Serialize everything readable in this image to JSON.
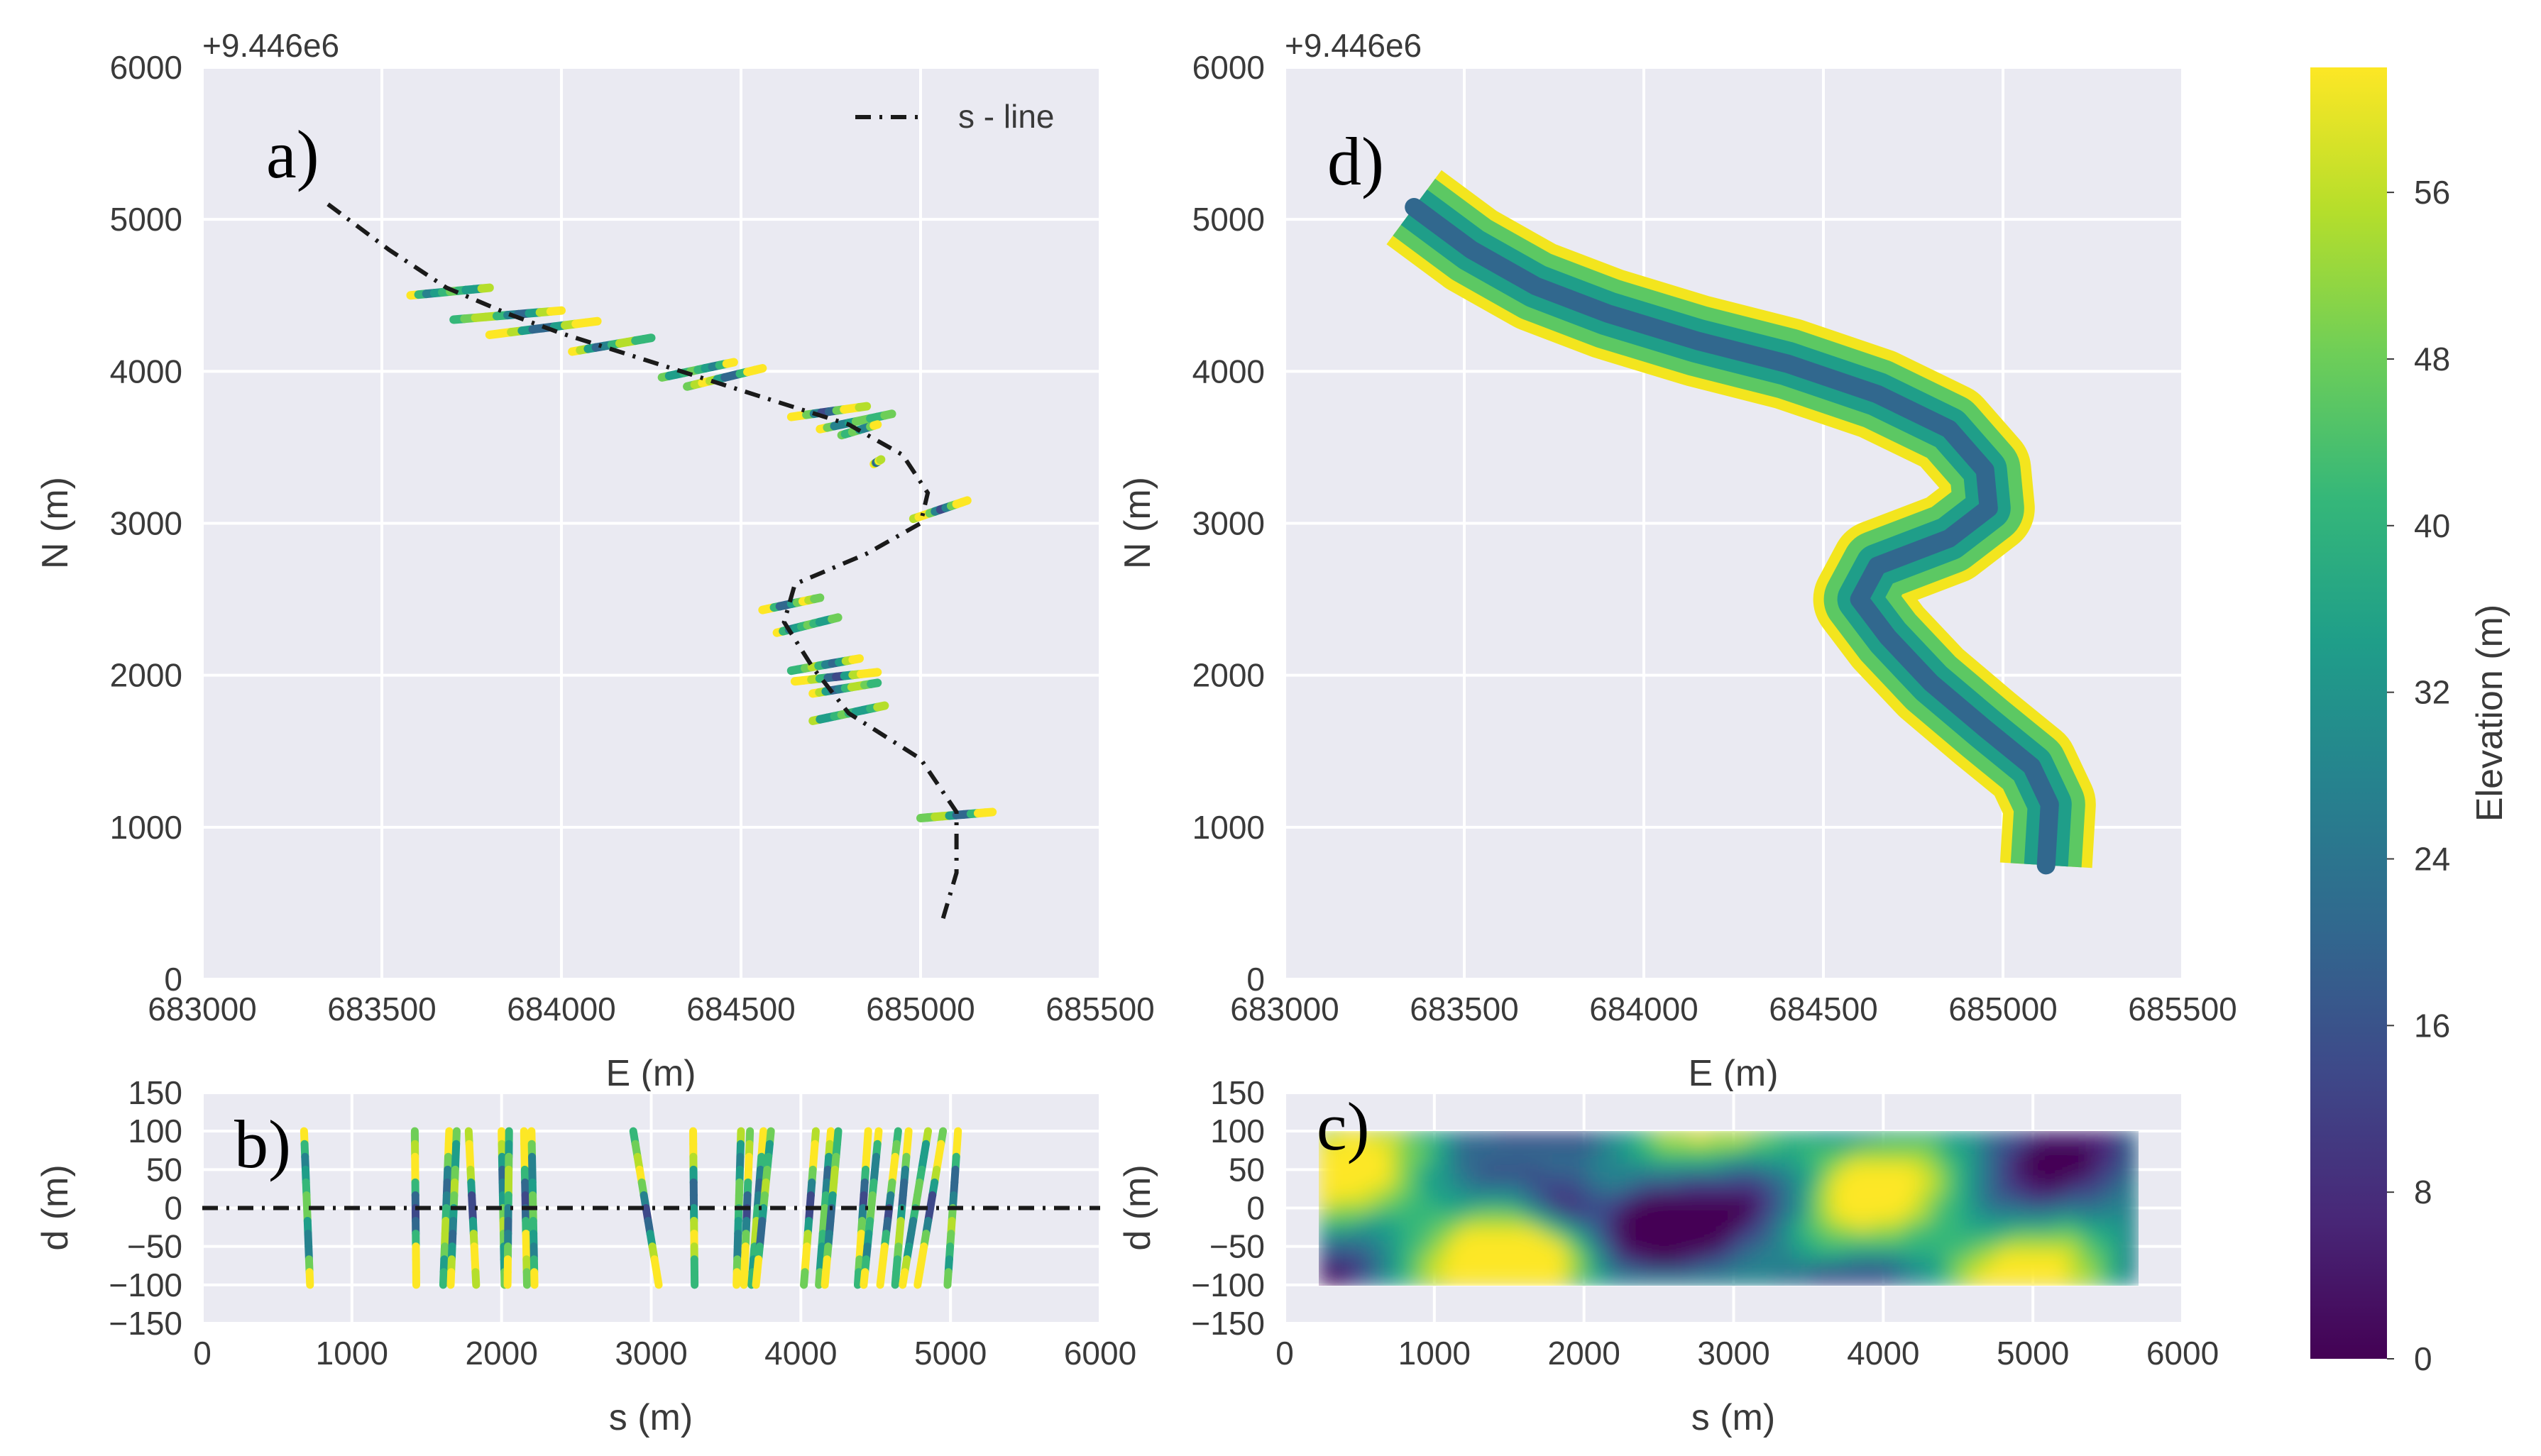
{
  "figure": {
    "colors": {
      "axes_bg": "#eaeaf2",
      "grid": "#ffffff",
      "text": "#3a3a3a",
      "s_line": "#1a1a1a"
    },
    "viridis": [
      "#440154",
      "#482878",
      "#3e4989",
      "#31688e",
      "#26828e",
      "#1f9e89",
      "#35b779",
      "#6ece58",
      "#b5de2b",
      "#fde725"
    ]
  },
  "chart_data": [
    {
      "id": "a",
      "panel_label": "a)",
      "type": "scatter",
      "title": "",
      "xlabel": "E (m)",
      "ylabel": "N (m)",
      "offset_text": "+9.446e6",
      "xlim": [
        683000,
        685500
      ],
      "ylim": [
        0,
        6000
      ],
      "xticks": [
        "683000",
        "683500",
        "684000",
        "684500",
        "685000",
        "685500"
      ],
      "yticks": [
        "0",
        "1000",
        "2000",
        "3000",
        "4000",
        "5000",
        "6000"
      ],
      "legend": {
        "label": "s - line",
        "placement": "top-right"
      },
      "s_line": {
        "x": [
          683350,
          683520,
          683680,
          683850,
          684000,
          684200,
          684400,
          684600,
          684800,
          684950,
          685020,
          685000,
          684850,
          684650,
          684620,
          684700,
          684800,
          685000,
          685100,
          685100,
          685060
        ],
        "y": [
          5100,
          4800,
          4550,
          4380,
          4250,
          4100,
          3950,
          3800,
          3650,
          3450,
          3200,
          3000,
          2800,
          2600,
          2350,
          2050,
          1750,
          1450,
          1100,
          700,
          380
        ]
      },
      "transects": [
        {
          "x1": 683580,
          "y1": 4500,
          "x2": 683800,
          "y2": 4550
        },
        {
          "x1": 683700,
          "y1": 4340,
          "x2": 684000,
          "y2": 4400
        },
        {
          "x1": 683800,
          "y1": 4240,
          "x2": 684100,
          "y2": 4330
        },
        {
          "x1": 684030,
          "y1": 4130,
          "x2": 684250,
          "y2": 4220
        },
        {
          "x1": 684280,
          "y1": 3960,
          "x2": 684480,
          "y2": 4060
        },
        {
          "x1": 684350,
          "y1": 3900,
          "x2": 684560,
          "y2": 4020
        },
        {
          "x1": 684640,
          "y1": 3700,
          "x2": 684850,
          "y2": 3770
        },
        {
          "x1": 684720,
          "y1": 3620,
          "x2": 684920,
          "y2": 3720
        },
        {
          "x1": 684780,
          "y1": 3580,
          "x2": 684880,
          "y2": 3650
        },
        {
          "x1": 684980,
          "y1": 3030,
          "x2": 685130,
          "y2": 3150
        },
        {
          "x1": 684560,
          "y1": 2430,
          "x2": 684720,
          "y2": 2510
        },
        {
          "x1": 684600,
          "y1": 2280,
          "x2": 684770,
          "y2": 2380
        },
        {
          "x1": 684640,
          "y1": 2030,
          "x2": 684830,
          "y2": 2110
        },
        {
          "x1": 684650,
          "y1": 1960,
          "x2": 684880,
          "y2": 2020
        },
        {
          "x1": 684700,
          "y1": 1880,
          "x2": 684880,
          "y2": 1950
        },
        {
          "x1": 684700,
          "y1": 1700,
          "x2": 684900,
          "y2": 1800
        },
        {
          "x1": 685000,
          "y1": 1060,
          "x2": 685200,
          "y2": 1100
        },
        {
          "x1": 684870,
          "y1": 3390,
          "x2": 684890,
          "y2": 3420
        }
      ]
    },
    {
      "id": "b",
      "panel_label": "b)",
      "type": "scatter",
      "title": "",
      "xlabel": "s (m)",
      "ylabel": "d (m)",
      "xlim": [
        0,
        6000
      ],
      "ylim": [
        -150,
        150
      ],
      "xticks": [
        "0",
        "1000",
        "2000",
        "3000",
        "4000",
        "5000",
        "6000"
      ],
      "yticks": [
        "−150",
        "−100",
        "−50",
        "0",
        "50",
        "100",
        "150"
      ],
      "transects": [
        {
          "s_top": 680,
          "s_bottom": 720
        },
        {
          "s_top": 1420,
          "s_bottom": 1430
        },
        {
          "s_top": 1650,
          "s_bottom": 1610
        },
        {
          "s_top": 1700,
          "s_bottom": 1660
        },
        {
          "s_top": 1780,
          "s_bottom": 1830
        },
        {
          "s_top": 2000,
          "s_bottom": 2020
        },
        {
          "s_top": 2050,
          "s_bottom": 2040
        },
        {
          "s_top": 2150,
          "s_bottom": 2170
        },
        {
          "s_top": 2200,
          "s_bottom": 2220
        },
        {
          "s_top": 2880,
          "s_bottom": 3050
        },
        {
          "s_top": 3280,
          "s_bottom": 3290
        },
        {
          "s_top": 3600,
          "s_bottom": 3570
        },
        {
          "s_top": 3660,
          "s_bottom": 3620
        },
        {
          "s_top": 3750,
          "s_bottom": 3670
        },
        {
          "s_top": 3800,
          "s_bottom": 3700
        },
        {
          "s_top": 4100,
          "s_bottom": 4020
        },
        {
          "s_top": 4200,
          "s_bottom": 4120
        },
        {
          "s_top": 4250,
          "s_bottom": 4160
        },
        {
          "s_top": 4450,
          "s_bottom": 4380
        },
        {
          "s_top": 4520,
          "s_bottom": 4420
        },
        {
          "s_top": 4650,
          "s_bottom": 4530
        },
        {
          "s_top": 4720,
          "s_bottom": 4630
        },
        {
          "s_top": 4850,
          "s_bottom": 4680
        },
        {
          "s_top": 4950,
          "s_bottom": 4780
        },
        {
          "s_top": 5050,
          "s_bottom": 4980
        }
      ],
      "s_line_d": 0
    },
    {
      "id": "d",
      "panel_label": "d)",
      "type": "scatter",
      "title": "",
      "xlabel": "E (m)",
      "ylabel": "N (m)",
      "offset_text": "+9.446e6",
      "xlim": [
        683000,
        685500
      ],
      "ylim": [
        0,
        6000
      ],
      "xticks": [
        "683000",
        "683500",
        "684000",
        "684500",
        "685000",
        "685500"
      ],
      "yticks": [
        "0",
        "1000",
        "2000",
        "3000",
        "4000",
        "5000",
        "6000"
      ],
      "centerline": {
        "x": [
          683360,
          683520,
          683700,
          683900,
          684150,
          684400,
          684650,
          684850,
          684950,
          684960,
          684850,
          684650,
          684600,
          684680,
          684800,
          684950,
          685080,
          685130,
          685120
        ],
        "y": [
          5080,
          4800,
          4560,
          4380,
          4200,
          4050,
          3850,
          3620,
          3350,
          3100,
          2900,
          2720,
          2500,
          2250,
          1950,
          1650,
          1400,
          1150,
          750
        ]
      },
      "colorbar": {
        "label": "Elevation (m)",
        "range": [
          0,
          62
        ],
        "ticks": [
          "0",
          "8",
          "16",
          "24",
          "32",
          "40",
          "48",
          "56"
        ]
      }
    },
    {
      "id": "c",
      "panel_label": "c)",
      "type": "heatmap",
      "title": "",
      "xlabel": "s (m)",
      "ylabel": "d (m)",
      "xlim": [
        0,
        6000
      ],
      "ylim": [
        -150,
        150
      ],
      "xticks": [
        "0",
        "1000",
        "2000",
        "3000",
        "4000",
        "5000",
        "6000"
      ],
      "yticks": [
        "−150",
        "−100",
        "−50",
        "0",
        "50",
        "100",
        "150"
      ],
      "extent_s": [
        230,
        5700
      ],
      "extent_d": [
        -100,
        100
      ]
    }
  ]
}
